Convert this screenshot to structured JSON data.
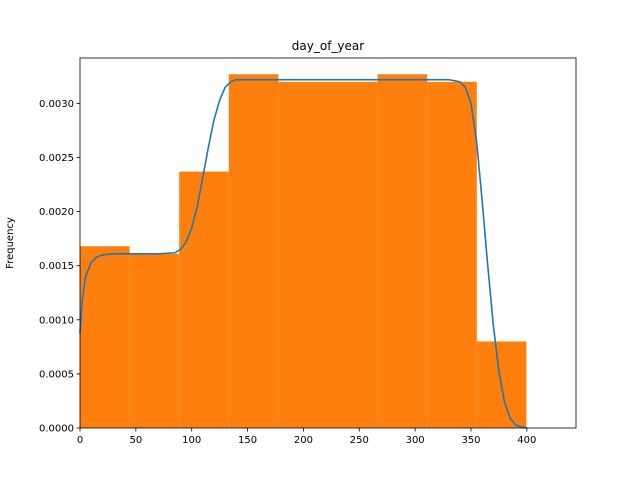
{
  "chart_data": {
    "type": "bar",
    "title": "day_of_year",
    "xlabel": "",
    "ylabel": "Frequency",
    "xlim": [
      0,
      444
    ],
    "ylim": [
      0,
      0.00342
    ],
    "grid": false,
    "x_ticks": [
      0,
      50,
      100,
      150,
      200,
      250,
      300,
      350,
      400
    ],
    "x_tick_labels": [
      "0",
      "50",
      "100",
      "150",
      "200",
      "250",
      "300",
      "350",
      "400"
    ],
    "y_ticks": [
      0,
      0.0005,
      0.001,
      0.0015,
      0.002,
      0.0025,
      0.003
    ],
    "y_tick_labels": [
      "0.0000",
      "0.0005",
      "0.0010",
      "0.0015",
      "0.0020",
      "0.0025",
      "0.0030"
    ],
    "histogram": {
      "color": "#ff7f0e",
      "bins": [
        {
          "start": 0,
          "end": 44.4,
          "value": 0.00168
        },
        {
          "start": 44.4,
          "end": 88.8,
          "value": 0.00161
        },
        {
          "start": 88.8,
          "end": 133.2,
          "value": 0.00237
        },
        {
          "start": 133.2,
          "end": 177.6,
          "value": 0.00327
        },
        {
          "start": 177.6,
          "end": 222.0,
          "value": 0.0032
        },
        {
          "start": 222.0,
          "end": 266.4,
          "value": 0.0032
        },
        {
          "start": 266.4,
          "end": 310.8,
          "value": 0.00327
        },
        {
          "start": 310.8,
          "end": 355.2,
          "value": 0.0032
        },
        {
          "start": 355.2,
          "end": 399.6,
          "value": 0.0008
        }
      ]
    },
    "density_curve": {
      "color": "#1f77b4",
      "x": [
        0,
        2,
        5,
        10,
        15,
        20,
        30,
        50,
        70,
        85,
        90,
        95,
        100,
        105,
        110,
        115,
        120,
        125,
        130,
        135,
        140,
        145,
        150,
        200,
        250,
        300,
        330,
        340,
        345,
        350,
        355,
        360,
        365,
        370,
        375,
        380,
        385,
        390,
        395,
        400
      ],
      "y": [
        0.00088,
        0.00118,
        0.0014,
        0.00153,
        0.00158,
        0.0016,
        0.00161,
        0.00161,
        0.00161,
        0.00162,
        0.00165,
        0.00172,
        0.00185,
        0.00205,
        0.00232,
        0.0026,
        0.00285,
        0.00303,
        0.00315,
        0.0032,
        0.00322,
        0.00322,
        0.00322,
        0.00322,
        0.00322,
        0.00322,
        0.00322,
        0.0032,
        0.00315,
        0.003,
        0.00265,
        0.0021,
        0.0015,
        0.00095,
        0.00052,
        0.00024,
        9e-05,
        3e-05,
        1e-05,
        0.0
      ]
    }
  }
}
